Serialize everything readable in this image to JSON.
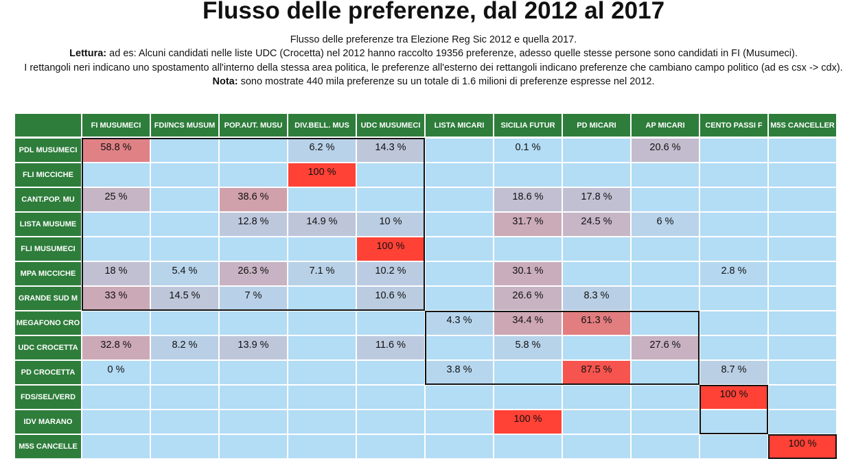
{
  "page": {
    "title": "Flusso delle preferenze, dal 2012 al 2017",
    "line1": "Flusso delle preferenze tra Elezione Reg Sic 2012 e quella 2017.",
    "lettura_label": "Lettura:",
    "lettura_text": " ad es: Alcuni candidati nelle liste UDC (Crocetta) nel 2012 hanno raccolto 19356 preferenze, adesso quelle stesse persone sono candidati in FI (Musumeci).",
    "line3": "I rettangoli neri indicano uno spostamento all'interno della stessa area politica, le preferenze all'esterno dei rettangoli indicano preferenze che cambiano campo politico (ad es csx -> cdx).",
    "nota_label": "Nota:",
    "nota_text": " sono mostrate 440 mila preferenze su un totale di 1.6 milioni di preferenze espresse nel 2012."
  },
  "chart_data": {
    "type": "heatmap",
    "columns": [
      "FI MUSUMECI",
      "FDI/NCS MUSUM",
      "POP.AUT. MUSU",
      "DIV.BELL. MUS",
      "UDC MUSUMECI",
      "LISTA MICARI",
      "SICILIA FUTUR",
      "PD MICARI",
      "AP MICARI",
      "CENTO PASSI F",
      "M5S CANCELLER"
    ],
    "rows": [
      "PDL MUSUMECI",
      "FLI MICCICHE",
      "CANT.POP. MU",
      "LISTA MUSUME",
      "FLI MUSUMECI",
      "MPA MICCICHE",
      "GRANDE SUD M",
      "MEGAFONO CRO",
      "UDC CROCETTA",
      "PD CROCETTA",
      "FDS/SEL/VERD",
      "IDV MARANO",
      "M5S CANCELLE"
    ],
    "unit": "%",
    "values": [
      [
        58.8,
        null,
        null,
        6.2,
        14.3,
        null,
        0.1,
        null,
        20.6,
        null,
        null
      ],
      [
        null,
        null,
        null,
        100,
        null,
        null,
        null,
        null,
        null,
        null,
        null
      ],
      [
        25,
        null,
        38.6,
        null,
        null,
        null,
        18.6,
        17.8,
        null,
        null,
        null
      ],
      [
        null,
        null,
        12.8,
        14.9,
        10,
        null,
        31.7,
        24.5,
        6,
        null,
        null
      ],
      [
        null,
        null,
        null,
        null,
        100,
        null,
        null,
        null,
        null,
        null,
        null
      ],
      [
        18,
        5.4,
        26.3,
        7.1,
        10.2,
        null,
        30.1,
        null,
        null,
        2.8,
        null
      ],
      [
        33,
        14.5,
        7,
        null,
        10.6,
        null,
        26.6,
        8.3,
        null,
        null,
        null
      ],
      [
        null,
        null,
        null,
        null,
        null,
        4.3,
        34.4,
        61.3,
        null,
        null,
        null
      ],
      [
        32.8,
        8.2,
        13.9,
        null,
        11.6,
        null,
        5.8,
        null,
        27.6,
        null,
        null
      ],
      [
        0,
        null,
        null,
        null,
        null,
        3.8,
        null,
        87.5,
        null,
        8.7,
        null
      ],
      [
        null,
        null,
        null,
        null,
        null,
        null,
        null,
        null,
        null,
        100,
        null
      ],
      [
        null,
        null,
        null,
        null,
        null,
        null,
        100,
        null,
        null,
        null,
        null
      ],
      [
        null,
        null,
        null,
        null,
        null,
        null,
        null,
        null,
        null,
        null,
        100
      ]
    ],
    "groups": [
      {
        "rows": [
          0,
          6
        ],
        "cols": [
          0,
          4
        ]
      },
      {
        "rows": [
          7,
          9
        ],
        "cols": [
          5,
          8
        ]
      },
      {
        "rows": [
          10,
          11
        ],
        "cols": [
          9,
          9
        ]
      },
      {
        "rows": [
          12,
          12
        ],
        "cols": [
          10,
          10
        ]
      }
    ],
    "colors": {
      "header_bg": "#2e7d3b",
      "empty_cell": "#b3dcf5",
      "low": "#b3dcf5",
      "high": "#ff4136"
    }
  }
}
